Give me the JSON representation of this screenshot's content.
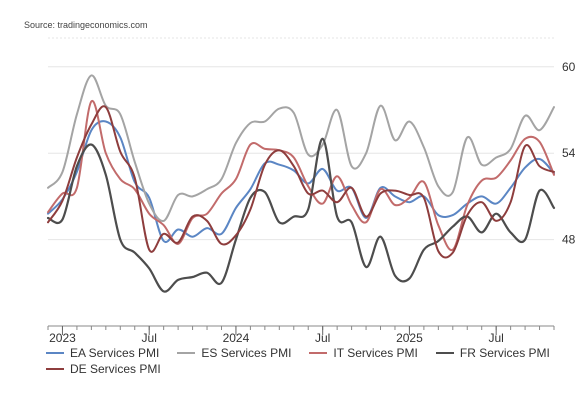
{
  "source": "Source: tradingeconomics.com",
  "chart_data": {
    "type": "line",
    "x_start": "2022-12",
    "x_ticks": [
      {
        "label": "2023",
        "month_index": 1
      },
      {
        "label": "Jul",
        "month_index": 7
      },
      {
        "label": "2024",
        "month_index": 13
      },
      {
        "label": "Jul",
        "month_index": 19
      },
      {
        "label": "2025",
        "month_index": 25
      },
      {
        "label": "Jul",
        "month_index": 31
      }
    ],
    "y_ticks": [
      48,
      54,
      60
    ],
    "ylim": [
      42,
      62
    ],
    "grid": "horizontal",
    "legend_placement": "bottom",
    "series": [
      {
        "name": "EA Services PMI",
        "color": "#5b86c4",
        "values": [
          49.8,
          50.8,
          52.7,
          55.6,
          56.2,
          55.1,
          52.0,
          50.9,
          47.9,
          48.7,
          48.2,
          48.8,
          48.4,
          50.2,
          51.5,
          53.3,
          53.2,
          52.8,
          51.9,
          52.9,
          51.4,
          51.6,
          49.5,
          51.6,
          51.0,
          50.6,
          51.0,
          49.7,
          49.7,
          50.5,
          51.0,
          50.5,
          51.6,
          53.0,
          53.6,
          52.6
        ]
      },
      {
        "name": "ES Services PMI",
        "color": "#a4a4a4",
        "values": [
          51.6,
          52.7,
          56.7,
          59.4,
          57.3,
          56.7,
          53.4,
          50.5,
          49.3,
          51.1,
          51.0,
          51.5,
          52.2,
          54.7,
          56.1,
          56.2,
          57.1,
          56.8,
          53.9,
          54.6,
          57.0,
          53.1,
          54.0,
          57.3,
          54.9,
          56.2,
          54.4,
          51.7,
          51.3,
          55.1,
          53.2,
          53.7,
          54.3,
          56.6,
          55.6,
          57.2
        ]
      },
      {
        "name": "IT Services PMI",
        "color": "#c26b6b",
        "values": [
          49.9,
          51.2,
          51.6,
          57.6,
          54.0,
          52.2,
          51.5,
          49.8,
          49.0,
          47.7,
          49.5,
          49.8,
          51.2,
          52.2,
          54.6,
          54.3,
          54.2,
          53.7,
          51.7,
          50.5,
          52.4,
          50.4,
          49.2,
          51.5,
          50.4,
          50.9,
          52.0,
          49.0,
          47.3,
          50.4,
          52.1,
          52.3,
          53.5,
          55.0,
          54.8,
          52.5
        ]
      },
      {
        "name": "FR Services PMI",
        "color": "#4d4d4d",
        "values": [
          49.5,
          49.4,
          53.1,
          54.6,
          52.5,
          48.0,
          47.1,
          46.0,
          44.4,
          45.2,
          45.4,
          45.7,
          45.0,
          48.0,
          50.9,
          51.3,
          49.2,
          49.6,
          50.1,
          55.0,
          49.6,
          49.2,
          46.1,
          48.2,
          45.5,
          45.3,
          47.3,
          47.9,
          48.9,
          49.6,
          48.5,
          49.8,
          48.5,
          48.0,
          51.4,
          50.2
        ]
      },
      {
        "name": "DE Services PMI",
        "color": "#8e3d3d",
        "values": [
          49.2,
          50.7,
          53.7,
          56.0,
          57.2,
          54.1,
          52.3,
          47.3,
          48.4,
          47.8,
          49.6,
          49.3,
          47.7,
          48.3,
          50.1,
          53.2,
          54.2,
          53.1,
          51.2,
          51.4,
          50.6,
          51.6,
          49.6,
          51.2,
          51.4,
          51.1,
          50.9,
          47.2,
          47.1,
          49.7,
          50.6,
          49.3,
          50.6,
          54.5,
          53.1,
          52.7
        ]
      }
    ]
  }
}
